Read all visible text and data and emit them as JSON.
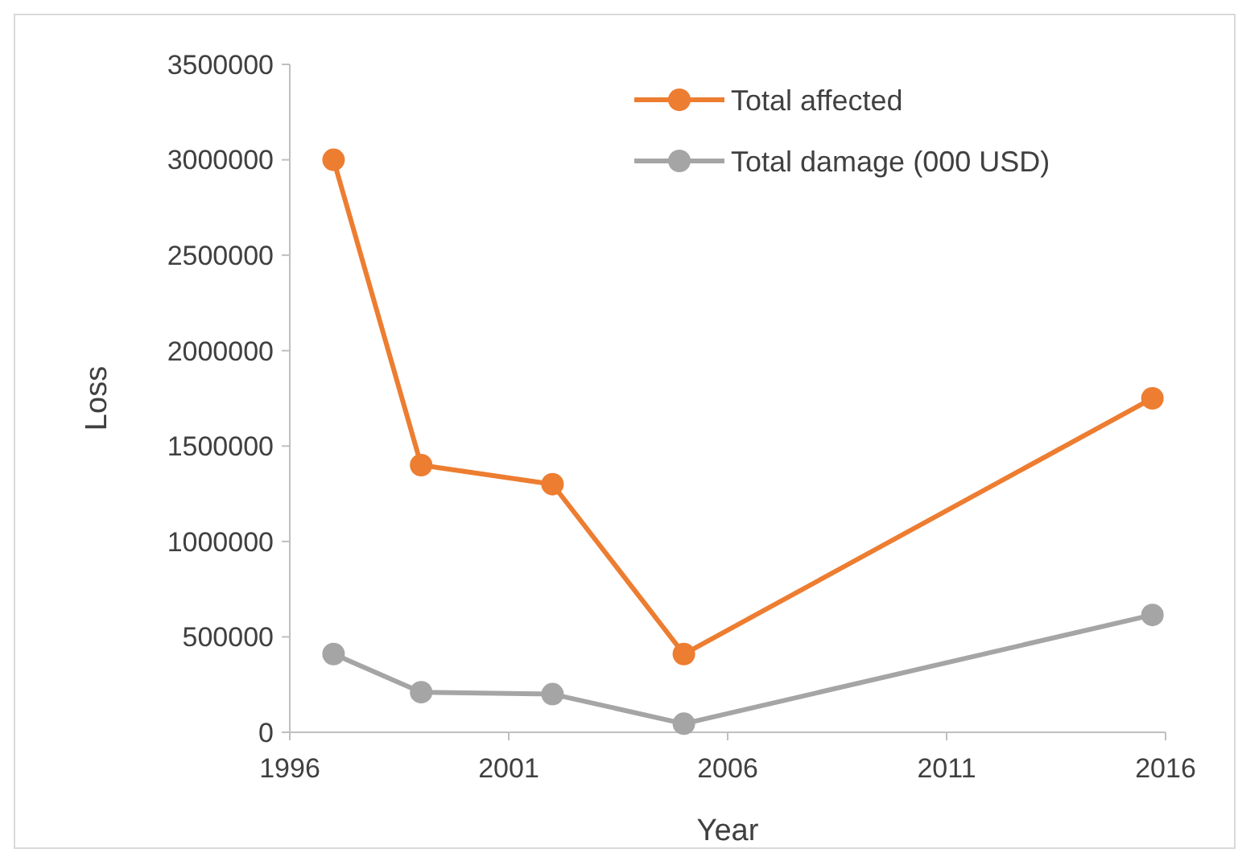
{
  "chart_data": {
    "type": "line",
    "xlabel": "Year",
    "ylabel": "Loss",
    "x": [
      1997,
      1999,
      2002,
      2005,
      2015.7
    ],
    "series": [
      {
        "name": "Total affected",
        "color": "#ed7d31",
        "values": [
          3000000,
          1400000,
          1300000,
          410000,
          1750000
        ]
      },
      {
        "name": "Total damage (000 USD)",
        "color": "#a5a5a5",
        "values": [
          410000,
          210000,
          200000,
          45000,
          615000
        ]
      }
    ],
    "xlim": [
      1996,
      2016
    ],
    "xticks": [
      1996,
      2001,
      2006,
      2011,
      2016
    ],
    "ylim": [
      0,
      3500000
    ],
    "yticks": [
      0,
      500000,
      1000000,
      1500000,
      2000000,
      2500000,
      3000000,
      3500000
    ],
    "grid": false,
    "legend": "top right",
    "marker": "circle",
    "line_style": "solid"
  }
}
